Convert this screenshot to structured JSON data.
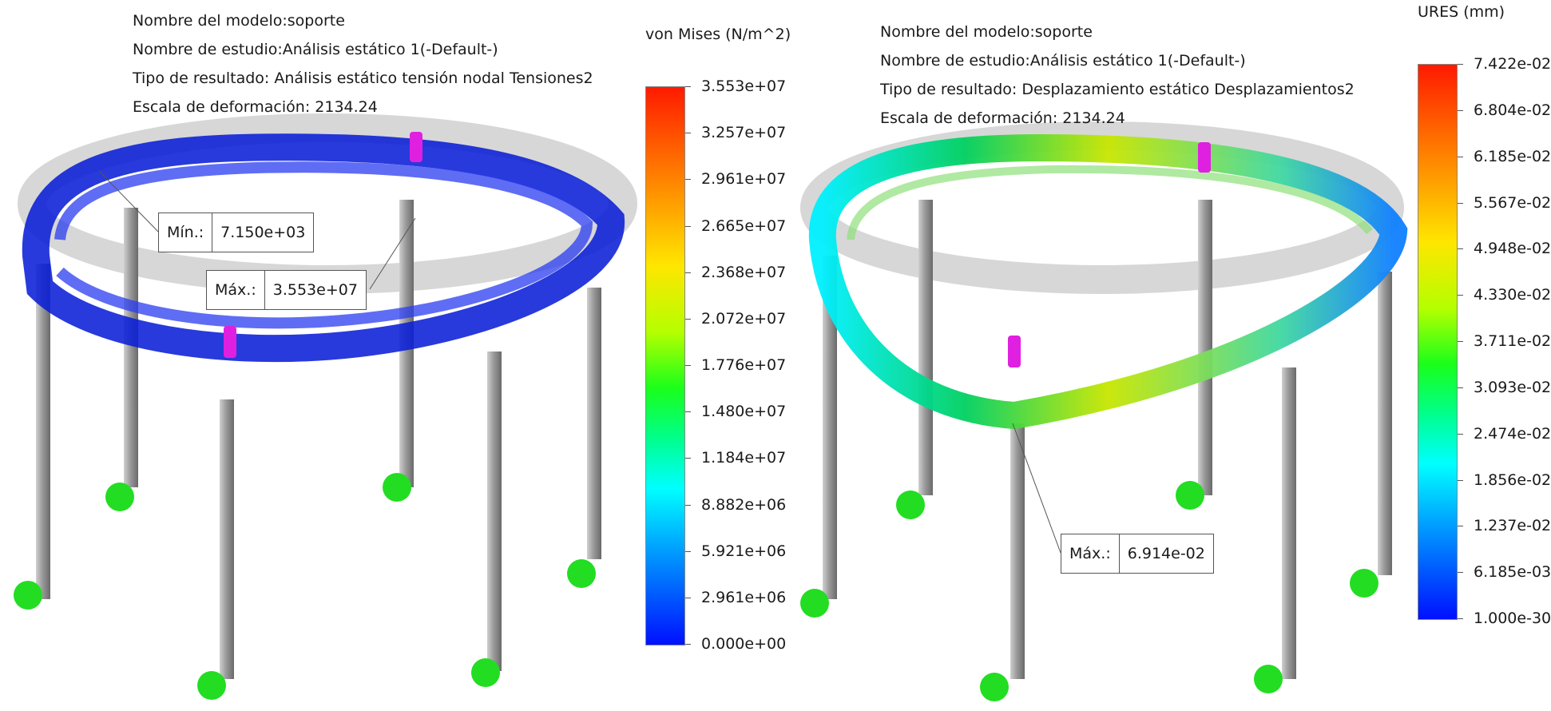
{
  "left_plot": {
    "info": [
      "Nombre del modelo:soporte",
      "Nombre de estudio:Análisis estático 1(-Default-)",
      "Tipo de resultado: Análisis estático tensión nodal Tensiones2",
      "Escala de deformación: 2134.24"
    ],
    "legend": {
      "title": "von Mises (N/m^2)",
      "ticks": [
        "3.553e+07",
        "3.257e+07",
        "2.961e+07",
        "2.665e+07",
        "2.368e+07",
        "2.072e+07",
        "1.776e+07",
        "1.480e+07",
        "1.184e+07",
        "8.882e+06",
        "5.921e+06",
        "2.961e+06",
        "0.000e+00"
      ]
    },
    "min_callout": {
      "label": "Mín.:",
      "value": "7.150e+03"
    },
    "max_callout": {
      "label": "Máx.:",
      "value": "3.553e+07"
    },
    "ring_color": "#0a1fd6"
  },
  "right_plot": {
    "info": [
      "Nombre del modelo:soporte",
      "Nombre de estudio:Análisis estático 1(-Default-)",
      "Tipo de resultado: Desplazamiento estático Desplazamientos2",
      "Escala de deformación: 2134.24"
    ],
    "legend": {
      "title": "URES (mm)",
      "ticks": [
        "7.422e-02",
        "6.804e-02",
        "6.185e-02",
        "5.567e-02",
        "4.948e-02",
        "4.330e-02",
        "3.711e-02",
        "3.093e-02",
        "2.474e-02",
        "1.856e-02",
        "1.237e-02",
        "6.185e-03",
        "1.000e-30"
      ]
    },
    "max_callout": {
      "label": "Máx.:",
      "value": "6.914e-02"
    }
  },
  "colors": {
    "fixture": "#22dd22",
    "load_arrow": "#e020e0",
    "leg": "#9a9a9a",
    "ghost": "#bcbcbc"
  }
}
